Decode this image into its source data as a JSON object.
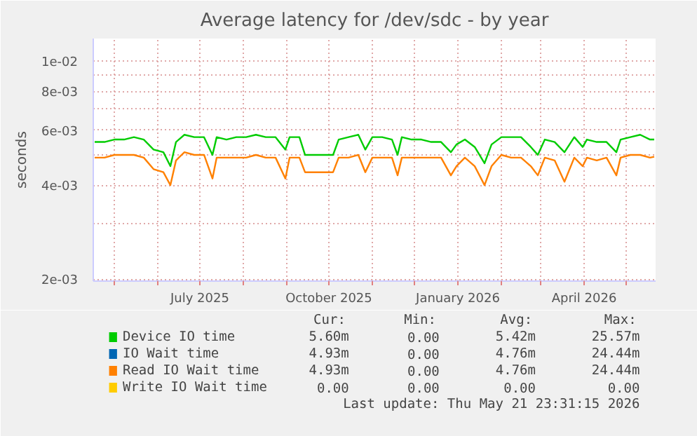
{
  "chart_data": {
    "type": "line",
    "title": "Average latency for /dev/sdc - by year",
    "ylabel": "seconds",
    "log": "y",
    "grid": true,
    "legend": "bottom",
    "marker": "none",
    "line_style": "solid",
    "x": [
      "2025-04-17",
      "2025-04-24",
      "2025-05-01",
      "2025-05-08",
      "2025-05-15",
      "2025-05-22",
      "2025-05-29",
      "2025-06-05",
      "2025-06-10",
      "2025-06-14",
      "2025-06-20",
      "2025-06-27",
      "2025-07-04",
      "2025-07-10",
      "2025-07-13",
      "2025-07-20",
      "2025-07-27",
      "2025-08-03",
      "2025-08-10",
      "2025-08-17",
      "2025-08-24",
      "2025-08-31",
      "2025-09-03",
      "2025-09-10",
      "2025-09-14",
      "2025-09-20",
      "2025-09-27",
      "2025-10-04",
      "2025-10-08",
      "2025-10-15",
      "2025-10-22",
      "2025-10-27",
      "2025-11-01",
      "2025-11-08",
      "2025-11-15",
      "2025-11-19",
      "2025-11-22",
      "2025-11-29",
      "2025-12-06",
      "2025-12-13",
      "2025-12-20",
      "2025-12-27",
      "2025-12-31",
      "2026-01-06",
      "2026-01-13",
      "2026-01-20",
      "2026-01-25",
      "2026-02-01",
      "2026-02-08",
      "2026-02-15",
      "2026-02-22",
      "2026-02-27",
      "2026-03-04",
      "2026-03-11",
      "2026-03-18",
      "2026-03-25",
      "2026-03-31",
      "2026-04-03",
      "2026-04-10",
      "2026-04-17",
      "2026-04-24",
      "2026-04-27",
      "2026-05-04",
      "2026-05-11",
      "2026-05-18",
      "2026-05-21"
    ],
    "series": [
      {
        "name": "Device IO time",
        "color": "#00cc00",
        "values": [
          0.0055,
          0.0055,
          0.0056,
          0.0056,
          0.0057,
          0.0056,
          0.0052,
          0.0051,
          0.0046,
          0.0055,
          0.0058,
          0.0057,
          0.0057,
          0.005,
          0.0057,
          0.0056,
          0.0057,
          0.0057,
          0.0058,
          0.0057,
          0.0057,
          0.0052,
          0.0057,
          0.0057,
          0.005,
          0.005,
          0.005,
          0.005,
          0.0056,
          0.0057,
          0.0058,
          0.0052,
          0.0057,
          0.0057,
          0.0056,
          0.005,
          0.0057,
          0.0056,
          0.0056,
          0.0055,
          0.0055,
          0.0051,
          0.0054,
          0.0056,
          0.0053,
          0.0047,
          0.0054,
          0.0057,
          0.0057,
          0.0057,
          0.0053,
          0.005,
          0.0056,
          0.0055,
          0.0051,
          0.0057,
          0.0053,
          0.0056,
          0.0055,
          0.0055,
          0.0051,
          0.0056,
          0.0057,
          0.0058,
          0.0056,
          0.0056
        ]
      },
      {
        "name": "IO Wait time",
        "color": "#0066b3",
        "values": [
          null,
          null,
          null,
          null,
          null,
          null,
          null,
          null,
          null,
          null,
          null,
          null,
          null,
          null,
          null,
          null,
          null,
          null,
          null,
          null,
          null,
          null,
          null,
          null,
          null,
          null,
          null,
          null,
          null,
          null,
          null,
          null,
          null,
          null,
          null,
          null,
          null,
          null,
          null,
          null,
          null,
          null,
          null,
          null,
          null,
          null,
          null,
          null,
          null,
          null,
          null,
          null,
          null,
          null,
          null,
          null,
          null,
          null,
          null,
          null,
          null,
          null,
          null,
          null,
          null,
          null
        ]
      },
      {
        "name": "Read IO Wait time",
        "color": "#ff8000",
        "values": [
          0.0049,
          0.0049,
          0.005,
          0.005,
          0.005,
          0.0049,
          0.0045,
          0.0044,
          0.004,
          0.0048,
          0.0051,
          0.005,
          0.005,
          0.0042,
          0.0049,
          0.0049,
          0.0049,
          0.0049,
          0.005,
          0.0049,
          0.0049,
          0.0042,
          0.0049,
          0.0049,
          0.0044,
          0.0044,
          0.0044,
          0.0044,
          0.0049,
          0.0049,
          0.005,
          0.0044,
          0.0049,
          0.0049,
          0.0049,
          0.0043,
          0.0049,
          0.0049,
          0.0049,
          0.0049,
          0.0049,
          0.0043,
          0.0046,
          0.0049,
          0.0046,
          0.004,
          0.0046,
          0.005,
          0.0049,
          0.0049,
          0.0046,
          0.0043,
          0.0049,
          0.0048,
          0.0041,
          0.0049,
          0.0046,
          0.0049,
          0.0048,
          0.0049,
          0.0043,
          0.0049,
          0.005,
          0.005,
          0.0049,
          0.00493
        ]
      },
      {
        "name": "Write IO Wait time",
        "color": "#ffcc00",
        "values": [
          null,
          null,
          null,
          null,
          null,
          null,
          null,
          null,
          null,
          null,
          null,
          null,
          null,
          null,
          null,
          null,
          null,
          null,
          null,
          null,
          null,
          null,
          null,
          null,
          null,
          null,
          null,
          null,
          null,
          null,
          null,
          null,
          null,
          null,
          null,
          null,
          null,
          null,
          null,
          null,
          null,
          null,
          null,
          null,
          null,
          null,
          null,
          null,
          null,
          null,
          null,
          null,
          null,
          null,
          null,
          null,
          null,
          null,
          null,
          null,
          null,
          null,
          null,
          null,
          null,
          null
        ]
      }
    ],
    "xlim": [
      "2025-04-16",
      "2026-05-22"
    ],
    "xticks": [
      {
        "value": "2025-05-01",
        "label": null
      },
      {
        "value": "2025-06-01",
        "label": null
      },
      {
        "value": "2025-07-01",
        "label": "July 2025"
      },
      {
        "value": "2025-08-01",
        "label": null
      },
      {
        "value": "2025-09-01",
        "label": null
      },
      {
        "value": "2025-10-01",
        "label": "October 2025"
      },
      {
        "value": "2025-11-01",
        "label": null
      },
      {
        "value": "2025-12-01",
        "label": null
      },
      {
        "value": "2026-01-01",
        "label": "January 2026"
      },
      {
        "value": "2026-02-01",
        "label": null
      },
      {
        "value": "2026-03-01",
        "label": null
      },
      {
        "value": "2026-04-01",
        "label": "April 2026"
      },
      {
        "value": "2026-05-01",
        "label": null
      }
    ],
    "ylim": [
      0.00197,
      0.0118
    ],
    "yticks": [
      {
        "value": 0.002,
        "label": "2e-03"
      },
      {
        "value": 0.003,
        "label": null
      },
      {
        "value": 0.004,
        "label": "4e-03"
      },
      {
        "value": 0.005,
        "label": null
      },
      {
        "value": 0.006,
        "label": "6e-03"
      },
      {
        "value": 0.007,
        "label": null
      },
      {
        "value": 0.008,
        "label": "8e-03"
      },
      {
        "value": 0.009,
        "label": null
      },
      {
        "value": 0.01,
        "label": "1e-02"
      }
    ],
    "annotations": [
      "Cur:",
      "Min:",
      "Avg:",
      "Max:",
      "5.60m",
      "0.00",
      "5.42m",
      "25.57m",
      "4.93m",
      "0.00",
      "4.76m",
      "24.44m",
      "4.93m",
      "0.00",
      "4.76m",
      "24.44m",
      "0.00",
      "0.00",
      "0.00",
      "0.00",
      "Last update: Thu May 21 23:31:15 2026"
    ]
  }
}
